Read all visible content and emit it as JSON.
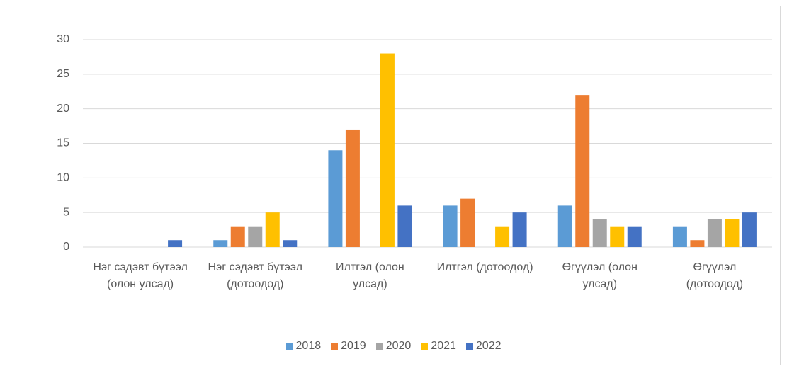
{
  "chart_data": {
    "type": "bar",
    "categories": [
      "Нэг сэдэвт бүтээл (олон улсад)",
      "Нэг сэдэвт бүтээл (дотоодод)",
      "Илтгэл (олон улсад)",
      "Илтгэл (дотоодод)",
      "Өгүүлэл (олон улсад)",
      "Өгүүлэл (дотоодод)"
    ],
    "series": [
      {
        "name": "2018",
        "color": "#5b9bd5",
        "values": [
          0,
          1,
          14,
          6,
          6,
          3
        ]
      },
      {
        "name": "2019",
        "color": "#ed7d31",
        "values": [
          0,
          3,
          17,
          7,
          22,
          1
        ]
      },
      {
        "name": "2020",
        "color": "#a5a5a5",
        "values": [
          0,
          3,
          0,
          0,
          4,
          4
        ]
      },
      {
        "name": "2021",
        "color": "#ffc000",
        "values": [
          0,
          5,
          28,
          3,
          3,
          4
        ]
      },
      {
        "name": "2022",
        "color": "#4472c4",
        "values": [
          1,
          1,
          6,
          5,
          3,
          5
        ]
      }
    ],
    "ylim": [
      0,
      30
    ],
    "yticks": [
      0,
      5,
      10,
      15,
      20,
      25,
      30
    ],
    "grid": true,
    "legend": "bottom"
  }
}
